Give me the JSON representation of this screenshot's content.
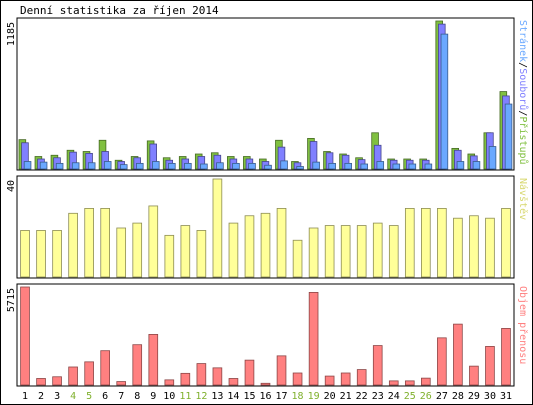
{
  "title": "Denní statistika za říjen 2014",
  "colors": {
    "background": "#ffffff",
    "frame": "#000000",
    "axis_text": "#000000",
    "weekend_label": "#7fb02c",
    "weekday_label": "#000000"
  },
  "chart_data": [
    {
      "type": "bar",
      "panel": "traffic",
      "ymax_label": "1185",
      "ylim": [
        0,
        1185
      ],
      "legend": [
        "Stránek",
        "Souborů",
        "Přístupů"
      ],
      "legend_colors": [
        "#6aa8ff",
        "#8080ff",
        "#80c040"
      ],
      "legend_separator": "/",
      "legend_placement": "right-vertical",
      "categories": [
        "1",
        "2",
        "3",
        "4",
        "5",
        "6",
        "7",
        "8",
        "9",
        "10",
        "11",
        "12",
        "13",
        "14",
        "15",
        "16",
        "17",
        "18",
        "19",
        "20",
        "21",
        "22",
        "23",
        "24",
        "25",
        "26",
        "27",
        "28",
        "29",
        "30",
        "31"
      ],
      "series": [
        {
          "name": "Přístupů",
          "color": "#80c040",
          "values": [
            235,
            100,
            110,
            150,
            140,
            230,
            70,
            100,
            225,
            90,
            100,
            120,
            130,
            100,
            100,
            80,
            230,
            60,
            245,
            140,
            120,
            90,
            290,
            80,
            80,
            80,
            1185,
            165,
            120,
            290,
            620
          ]
        },
        {
          "name": "Souborů",
          "color": "#8080ff",
          "values": [
            210,
            80,
            90,
            135,
            125,
            140,
            60,
            90,
            200,
            70,
            80,
            100,
            110,
            80,
            80,
            60,
            175,
            50,
            220,
            130,
            110,
            75,
            190,
            70,
            70,
            70,
            1160,
            150,
            105,
            290,
            585
          ]
        },
        {
          "name": "Stránek",
          "color": "#6aa8ff",
          "values": [
            60,
            55,
            45,
            50,
            50,
            60,
            35,
            45,
            60,
            45,
            45,
            40,
            50,
            45,
            45,
            30,
            65,
            20,
            55,
            45,
            45,
            40,
            60,
            40,
            40,
            40,
            1080,
            60,
            60,
            180,
            520
          ]
        }
      ]
    },
    {
      "type": "bar",
      "panel": "visits",
      "ymax_label": "40",
      "ylim": [
        0,
        40
      ],
      "legend": [
        "Návštěv"
      ],
      "legend_colors": [
        "#d8d870"
      ],
      "legend_placement": "right-vertical",
      "categories": [
        "1",
        "2",
        "3",
        "4",
        "5",
        "6",
        "7",
        "8",
        "9",
        "10",
        "11",
        "12",
        "13",
        "14",
        "15",
        "16",
        "17",
        "18",
        "19",
        "20",
        "21",
        "22",
        "23",
        "24",
        "25",
        "26",
        "27",
        "28",
        "29",
        "30",
        "31"
      ],
      "series": [
        {
          "name": "Návštěv",
          "color": "#ffff99",
          "values": [
            19,
            19,
            19,
            26,
            28,
            28,
            20,
            22,
            29,
            17,
            21,
            19,
            40,
            22,
            25,
            26,
            28,
            15,
            20,
            21,
            21,
            21,
            22,
            21,
            28,
            28,
            28,
            24,
            25,
            24,
            28
          ]
        }
      ]
    },
    {
      "type": "bar",
      "panel": "transfer",
      "ymax_label": "5715",
      "ylim": [
        0,
        5715
      ],
      "legend": [
        "Objem přenosu"
      ],
      "legend_colors": [
        "#ff8080"
      ],
      "legend_placement": "right-vertical",
      "categories": [
        "1",
        "2",
        "3",
        "4",
        "5",
        "6",
        "7",
        "8",
        "9",
        "10",
        "11",
        "12",
        "13",
        "14",
        "15",
        "16",
        "17",
        "18",
        "19",
        "20",
        "21",
        "22",
        "23",
        "24",
        "25",
        "26",
        "27",
        "28",
        "29",
        "30",
        "31"
      ],
      "series": [
        {
          "name": "Objem přenosu",
          "color": "#ff8080",
          "values": [
            5715,
            380,
            480,
            1050,
            1350,
            2000,
            200,
            2350,
            2950,
            300,
            680,
            1250,
            1000,
            380,
            1450,
            100,
            1700,
            700,
            5400,
            520,
            700,
            900,
            2300,
            240,
            240,
            400,
            2750,
            3550,
            1100,
            2250,
            3300
          ]
        }
      ]
    }
  ],
  "x_labels": [
    {
      "label": "1",
      "weekend": false
    },
    {
      "label": "2",
      "weekend": false
    },
    {
      "label": "3",
      "weekend": false
    },
    {
      "label": "4",
      "weekend": true
    },
    {
      "label": "5",
      "weekend": true
    },
    {
      "label": "6",
      "weekend": false
    },
    {
      "label": "7",
      "weekend": false
    },
    {
      "label": "8",
      "weekend": false
    },
    {
      "label": "9",
      "weekend": false
    },
    {
      "label": "10",
      "weekend": false
    },
    {
      "label": "11",
      "weekend": true
    },
    {
      "label": "12",
      "weekend": true
    },
    {
      "label": "13",
      "weekend": false
    },
    {
      "label": "14",
      "weekend": false
    },
    {
      "label": "15",
      "weekend": false
    },
    {
      "label": "16",
      "weekend": false
    },
    {
      "label": "17",
      "weekend": false
    },
    {
      "label": "18",
      "weekend": true
    },
    {
      "label": "19",
      "weekend": true
    },
    {
      "label": "20",
      "weekend": false
    },
    {
      "label": "21",
      "weekend": false
    },
    {
      "label": "22",
      "weekend": false
    },
    {
      "label": "23",
      "weekend": false
    },
    {
      "label": "24",
      "weekend": false
    },
    {
      "label": "25",
      "weekend": true
    },
    {
      "label": "26",
      "weekend": true
    },
    {
      "label": "27",
      "weekend": false
    },
    {
      "label": "28",
      "weekend": false
    },
    {
      "label": "29",
      "weekend": false
    },
    {
      "label": "30",
      "weekend": false
    },
    {
      "label": "31",
      "weekend": false
    }
  ]
}
